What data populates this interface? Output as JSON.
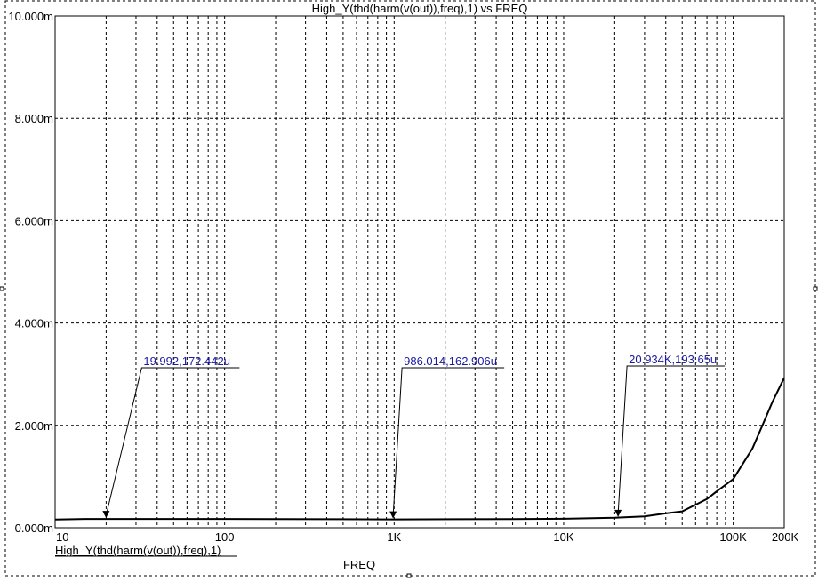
{
  "chart_data": {
    "type": "line",
    "title": "High_Y(thd(harm(v(out)),freq),1) vs FREQ",
    "xlabel": "FREQ",
    "ylabel": "",
    "x_scale": "log",
    "xlim": [
      10,
      200000
    ],
    "ylim": [
      0,
      0.01
    ],
    "grid": true,
    "x_ticks": [
      {
        "v": 10,
        "label": "10"
      },
      {
        "v": 100,
        "label": "100"
      },
      {
        "v": 1000,
        "label": "1K"
      },
      {
        "v": 10000,
        "label": "10K"
      },
      {
        "v": 100000,
        "label": "100K"
      },
      {
        "v": 200000,
        "label": "200K"
      }
    ],
    "y_ticks": [
      {
        "v": 0,
        "label": "0.000m"
      },
      {
        "v": 0.002,
        "label": "2.000m"
      },
      {
        "v": 0.004,
        "label": "4.000m"
      },
      {
        "v": 0.006,
        "label": "6.000m"
      },
      {
        "v": 0.008,
        "label": "8.000m"
      },
      {
        "v": 0.01,
        "label": "10.000m"
      }
    ],
    "series": [
      {
        "name": "High_Y(thd(harm(v(out)),freq),1)",
        "color": "#000000",
        "x": [
          10,
          15,
          20,
          200,
          1000,
          5000,
          10000,
          20000,
          30000,
          40000,
          50000,
          60000,
          70000,
          80000,
          100000,
          130000,
          150000,
          170000,
          200000
        ],
        "y": [
          0.00016,
          0.000172,
          0.000172,
          0.00017,
          0.000163,
          0.00017,
          0.000175,
          0.000194,
          0.00022,
          0.00028,
          0.00032,
          0.00045,
          0.00056,
          0.00071,
          0.00095,
          0.00155,
          0.00203,
          0.00245,
          0.00293
        ]
      }
    ],
    "annotations": [
      {
        "x": 19.992,
        "y": 0.000172442,
        "label": "19.992,172.442u"
      },
      {
        "x": 986.014,
        "y": 0.000162906,
        "label": "986.014,162.906u"
      },
      {
        "x": 20934,
        "y": 0.00019365,
        "label": "20.934K,193.65u"
      }
    ],
    "legend": "bottom-left"
  }
}
